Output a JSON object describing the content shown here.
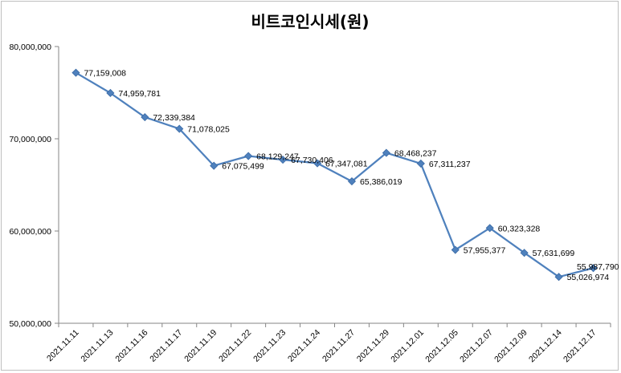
{
  "chart_data": {
    "type": "line",
    "title": "비트코인시세(원)",
    "xlabel": "",
    "ylabel": "",
    "ylim": [
      50000000,
      80000000
    ],
    "yticks": [
      50000000,
      60000000,
      70000000,
      80000000
    ],
    "ytick_labels": [
      "50,000,000",
      "60,000,000",
      "70,000,000",
      "80,000,000"
    ],
    "grid": false,
    "legend": "none",
    "color": "#4F81BD",
    "categories": [
      "2021.11.11",
      "2021.11.13",
      "2021.11.16",
      "2021.11.17",
      "2021.11.19",
      "2021.11.22",
      "2021.11.23",
      "2021.11.24",
      "2021.11.27",
      "2021.11.29",
      "2021.12.01",
      "2021.12.05",
      "2021.12.07",
      "2021.12.09",
      "2021.12.14",
      "2021.12.17"
    ],
    "values": [
      77159008,
      74959781,
      72339384,
      71078025,
      67075499,
      68129247,
      67730406,
      67347081,
      65386019,
      68468237,
      67311237,
      57955377,
      60323328,
      57631699,
      55026974,
      55987790
    ],
    "data_labels": [
      "77,159,008",
      "74,959,781",
      "72,339,384",
      "71,078,025",
      "67,075,499",
      "68,129,247",
      "67,730,406",
      "67,347,081",
      "65,386,019",
      "68,468,237",
      "67,311,237",
      "57,955,377",
      "60,323,328",
      "57,631,699",
      "55,026,974",
      "55,987,790"
    ]
  }
}
